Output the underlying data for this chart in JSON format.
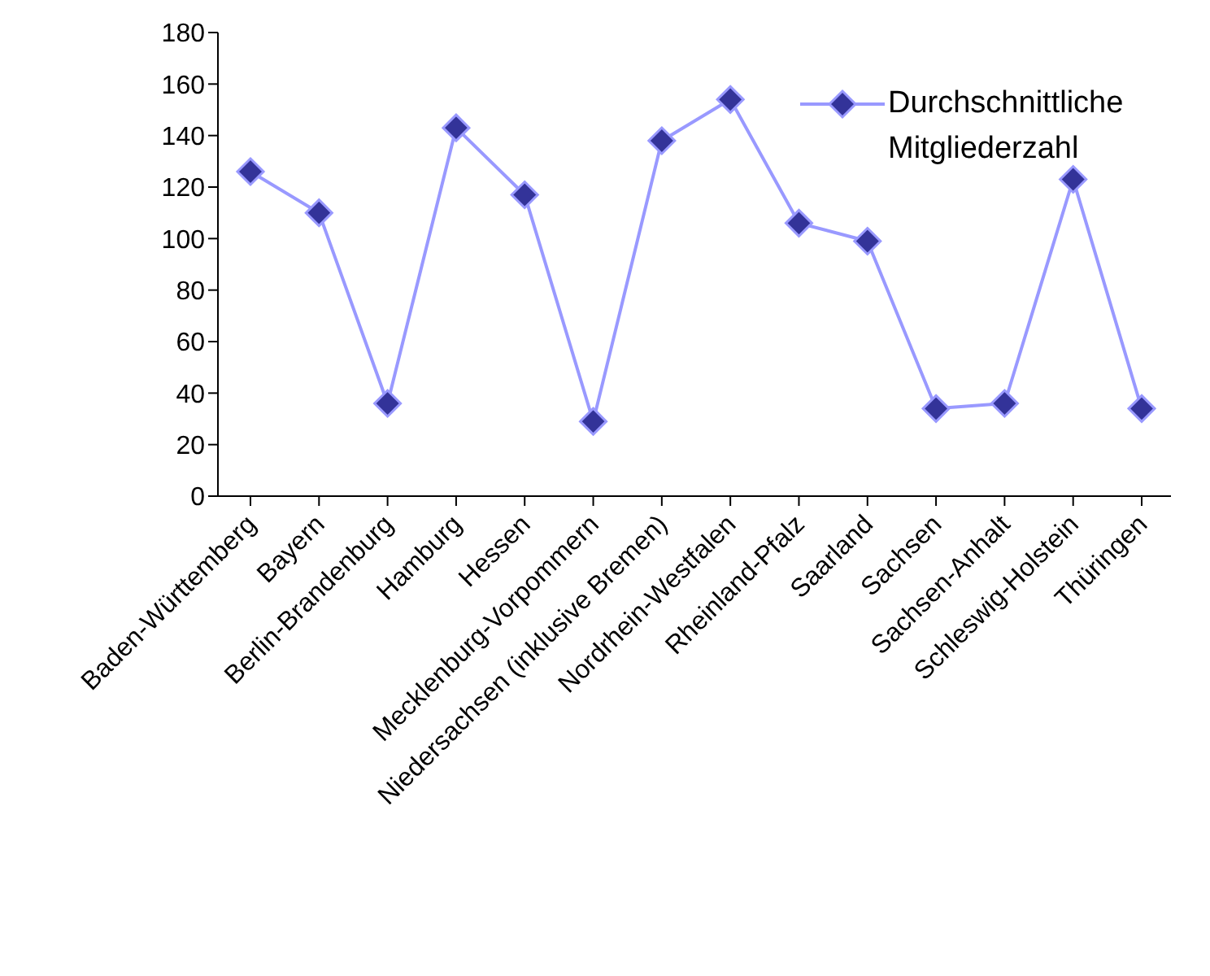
{
  "chart_data": {
    "type": "line",
    "categories": [
      "Baden-Württemberg",
      "Bayern",
      "Berlin-Brandenburg",
      "Hamburg",
      "Hessen",
      "Mecklenburg-Vorpommern",
      "Niedersachsen (inklusive Bremen)",
      "Nordrhein-Westfalen",
      "Rheinland-Pfalz",
      "Saarland",
      "Sachsen",
      "Sachsen-Anhalt",
      "Schleswig-Holstein",
      "Thüringen"
    ],
    "series": [
      {
        "name": "Durchschnittliche Mitgliederzahl",
        "color": "#333399",
        "values": [
          126,
          110,
          36,
          143,
          117,
          29,
          138,
          154,
          106,
          99,
          34,
          36,
          123,
          34
        ]
      }
    ],
    "ylim": [
      0,
      180
    ],
    "yticks": [
      0,
      20,
      40,
      60,
      80,
      100,
      120,
      140,
      160,
      180
    ],
    "grid": false,
    "legend": "top right",
    "marker": "diamond"
  }
}
